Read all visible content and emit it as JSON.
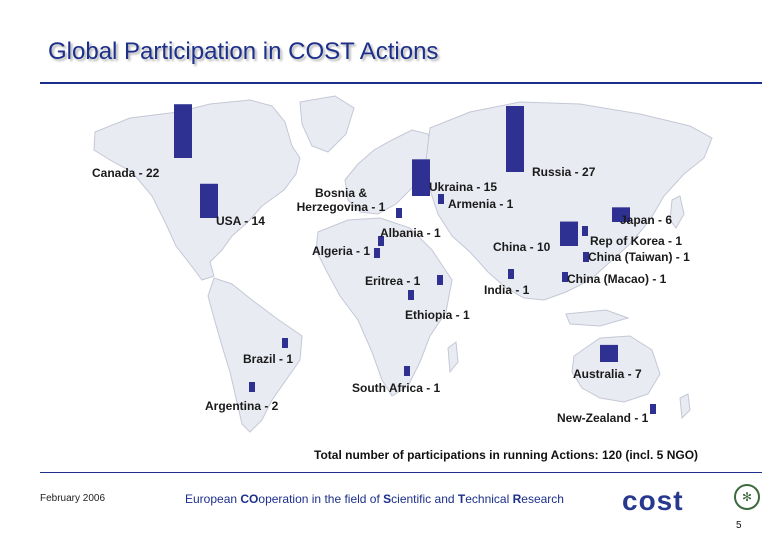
{
  "title": "Global Participation in COST Actions",
  "bar_color": "#2e3192",
  "land_color": "#e9ebf3",
  "total_text": "Total number of participations in running Actions: 120 (incl. 5 NGO)",
  "footer": {
    "date": "February 2006",
    "org_parts": [
      "European ",
      "CO",
      "operation in the field of ",
      "S",
      "cientific and ",
      "T",
      "echnical ",
      "R",
      "esearch"
    ],
    "logo": "cost",
    "page": "5"
  },
  "map_data": {
    "type": "bar-map",
    "entries": [
      {
        "id": "canada",
        "label": "Canada - 22",
        "value": 22
      },
      {
        "id": "usa",
        "label": "USA - 14",
        "value": 14
      },
      {
        "id": "bosnia",
        "label": "Bosnia & Herzegovina - 1",
        "value": 1
      },
      {
        "id": "ukraina",
        "label": "Ukraina - 15",
        "value": 15
      },
      {
        "id": "armenia",
        "label": "Armenia - 1",
        "value": 1
      },
      {
        "id": "russia",
        "label": "Russia - 27",
        "value": 27
      },
      {
        "id": "albania",
        "label": "Albania - 1",
        "value": 1
      },
      {
        "id": "algeria",
        "label": "Algeria - 1",
        "value": 1
      },
      {
        "id": "china",
        "label": "China - 10",
        "value": 10
      },
      {
        "id": "japan",
        "label": "Japan - 6",
        "value": 6
      },
      {
        "id": "korea",
        "label": "Rep of Korea - 1",
        "value": 1
      },
      {
        "id": "taiwan",
        "label": "China (Taiwan) - 1",
        "value": 1
      },
      {
        "id": "macao",
        "label": "China (Macao) - 1",
        "value": 1
      },
      {
        "id": "eritrea",
        "label": "Eritrea - 1",
        "value": 1
      },
      {
        "id": "india",
        "label": "India - 1",
        "value": 1
      },
      {
        "id": "ethiopia",
        "label": "Ethiopia - 1",
        "value": 1
      },
      {
        "id": "brazil",
        "label": "Brazil - 1",
        "value": 1
      },
      {
        "id": "australia",
        "label": "Australia - 7",
        "value": 7
      },
      {
        "id": "southafrica",
        "label": "South Africa - 1",
        "value": 1
      },
      {
        "id": "argentina",
        "label": "Argentina - 2",
        "value": 2
      },
      {
        "id": "newzealand",
        "label": "New-Zealand - 1",
        "value": 1
      }
    ]
  }
}
